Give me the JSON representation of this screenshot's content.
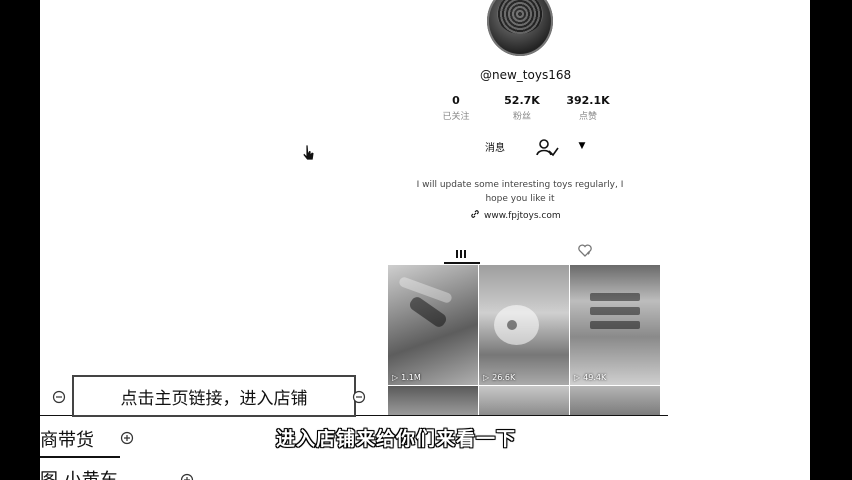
{
  "profile": {
    "handle": "@new_toys168",
    "stats": [
      {
        "num": "0",
        "label": "已关注"
      },
      {
        "num": "52.7K",
        "label": "粉丝"
      },
      {
        "num": "392.1K",
        "label": "点赞"
      }
    ],
    "message_label": "消息",
    "bio_line1": "I will update some interesting toys regularly, I",
    "bio_line2": "hope you like it",
    "link": "www.fpjtoys.com"
  },
  "videos": [
    {
      "plays": "1.1M"
    },
    {
      "plays": "26.6K"
    },
    {
      "plays": "49.4K"
    },
    {
      "plays": ""
    },
    {
      "plays": ""
    },
    {
      "plays": ""
    }
  ],
  "annotation": {
    "callout": "点击主页链接，进入店铺",
    "left_text1": "商带货",
    "left_text2": "图  小黄车"
  },
  "subtitle": "进入店铺来给你们来看一下",
  "icons": [
    "cursor-icon",
    "follow-user-icon",
    "dropdown-arrow-icon",
    "link-icon",
    "grid-icon",
    "liked-icon",
    "play-icon",
    "collapse-icon",
    "expand-icon"
  ]
}
